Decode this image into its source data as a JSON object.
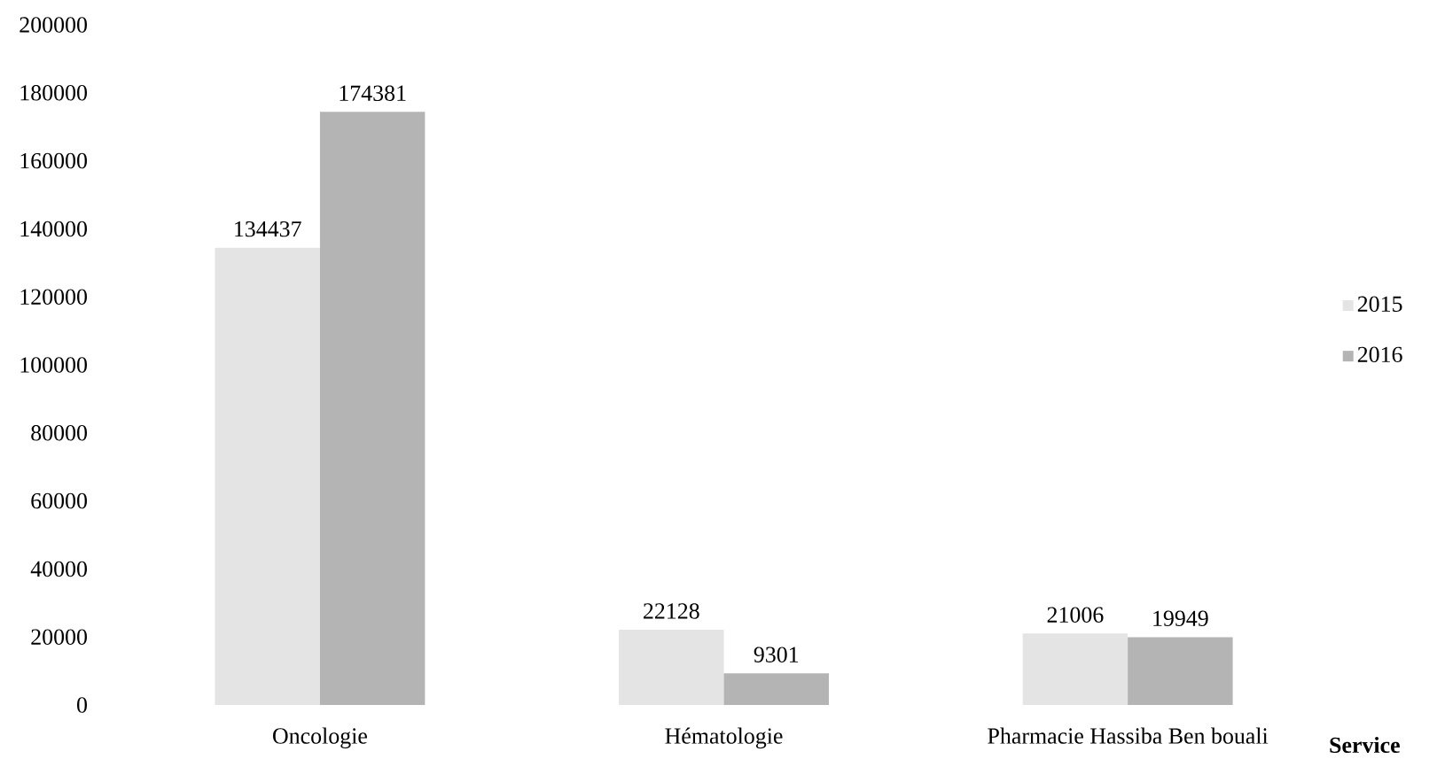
{
  "chart_data": {
    "type": "bar",
    "categories": [
      "Oncologie",
      "Hématologie",
      "Pharmacie Hassiba Ben bouali"
    ],
    "xlabel": "Service",
    "series": [
      {
        "name": "2015",
        "color": "#e4e4e4",
        "values": [
          134437,
          22128,
          21006
        ]
      },
      {
        "name": "2016",
        "color": "#b4b4b4",
        "values": [
          174381,
          9301,
          19949
        ]
      }
    ],
    "ylim": [
      0,
      200000
    ],
    "yticks": [
      0,
      20000,
      40000,
      60000,
      80000,
      100000,
      120000,
      140000,
      160000,
      180000,
      200000
    ],
    "data_labels": true,
    "legend": "right",
    "grid": false
  }
}
